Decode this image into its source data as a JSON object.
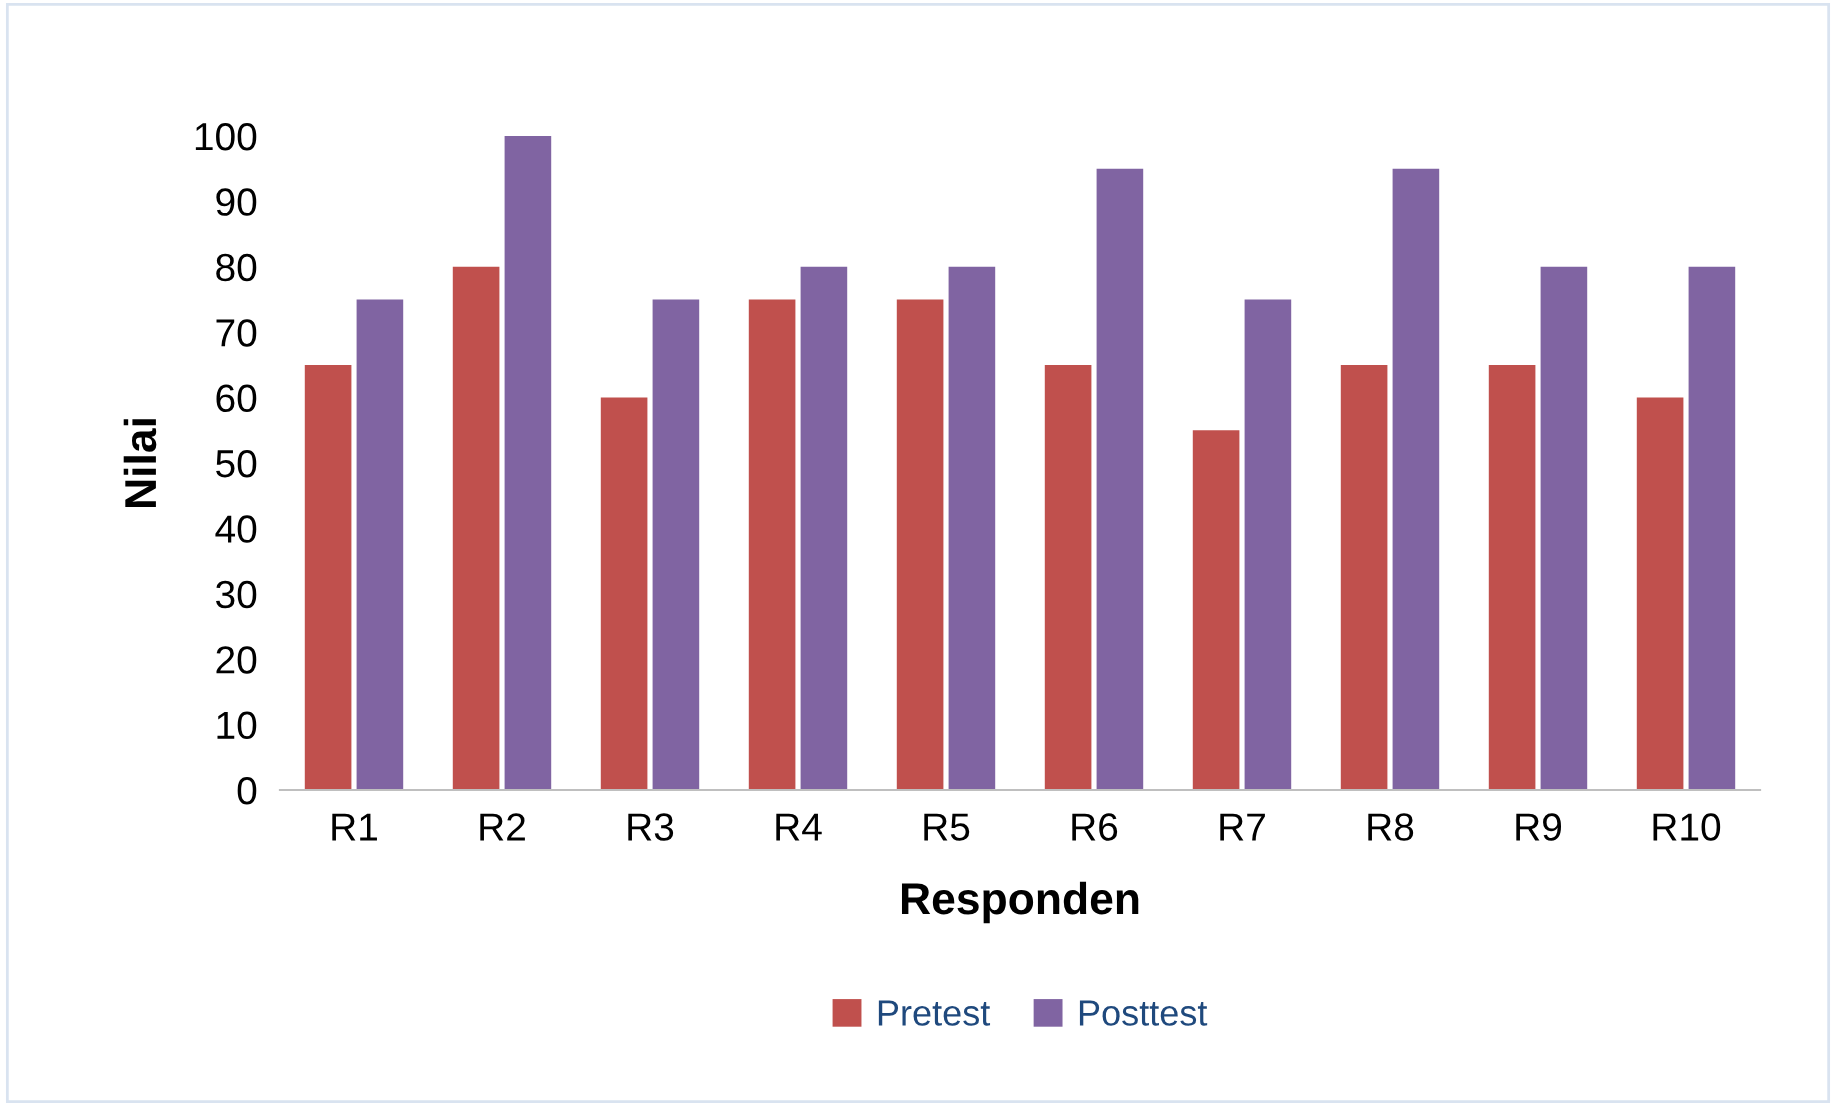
{
  "chart_data": {
    "type": "bar",
    "xlabel": "Responden",
    "ylabel": "Nilai",
    "categories": [
      "R1",
      "R2",
      "R3",
      "R4",
      "R5",
      "R6",
      "R7",
      "R8",
      "R9",
      "R10"
    ],
    "series": [
      {
        "name": "Pretest",
        "color": "#c0504d",
        "values": [
          65,
          80,
          60,
          75,
          75,
          65,
          55,
          65,
          65,
          60
        ]
      },
      {
        "name": "Posttest",
        "color": "#8064a2",
        "values": [
          75,
          100,
          75,
          80,
          80,
          95,
          75,
          95,
          80,
          80
        ]
      }
    ],
    "ylim": [
      0,
      100
    ],
    "yticks": [
      0,
      10,
      20,
      30,
      40,
      50,
      60,
      70,
      80,
      90,
      100
    ],
    "grid": false,
    "legend": "bottom"
  }
}
